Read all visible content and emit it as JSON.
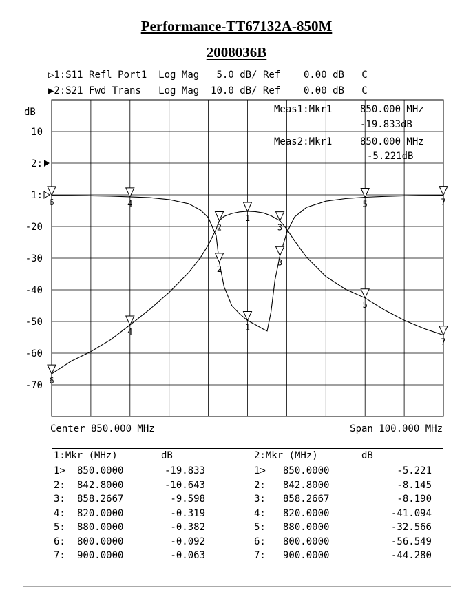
{
  "title": "Performance-TT67132A-850M",
  "subtitle": "2008036B",
  "traces_header": [
    {
      "marker": "▷1:",
      "param": "S11 Refl Port1",
      "format": "Log Mag",
      "scale": "5.0 dB/",
      "ref_label": "Ref",
      "ref": "0.00 dB",
      "tail": "C"
    },
    {
      "marker": "▶2:",
      "param": "S21 Fwd Trans",
      "format": "Log Mag",
      "scale": "10.0 dB/",
      "ref_label": "Ref",
      "ref": "0.00 dB",
      "tail": "C"
    }
  ],
  "y_unit": "dB",
  "y_axis_labels": [
    "10",
    "2:",
    "1:",
    "-20",
    "-30",
    "-40",
    "-50",
    "-60",
    "-70"
  ],
  "meas": [
    {
      "label": "Meas1:Mkr1",
      "freq": "850.000 MHz",
      "value": "-19.833dB"
    },
    {
      "label": "Meas2:Mkr1",
      "freq": "850.000 MHz",
      "value": "-5.221dB"
    }
  ],
  "center_label": "Center 850.000 MHz",
  "span_label": "Span 100.000 MHz",
  "table": {
    "left": {
      "header": {
        "mkr": "1:Mkr (MHz)",
        "unit": "dB"
      },
      "rows": [
        {
          "id": "1>",
          "freq": "850.0000",
          "val": "-19.833"
        },
        {
          "id": "2:",
          "freq": "842.8000",
          "val": "-10.643"
        },
        {
          "id": "3:",
          "freq": "858.2667",
          "val": "-9.598"
        },
        {
          "id": "4:",
          "freq": "820.0000",
          "val": "-0.319"
        },
        {
          "id": "5:",
          "freq": "880.0000",
          "val": "-0.382"
        },
        {
          "id": "6:",
          "freq": "800.0000",
          "val": "-0.092"
        },
        {
          "id": "7:",
          "freq": "900.0000",
          "val": "-0.063"
        }
      ]
    },
    "right": {
      "header": {
        "mkr": "2:Mkr (MHz)",
        "unit": "dB"
      },
      "rows": [
        {
          "id": "1>",
          "freq": "850.0000",
          "val": "-5.221"
        },
        {
          "id": "2:",
          "freq": "842.8000",
          "val": "-8.145"
        },
        {
          "id": "3:",
          "freq": "858.2667",
          "val": "-8.190"
        },
        {
          "id": "4:",
          "freq": "820.0000",
          "val": "-41.094"
        },
        {
          "id": "5:",
          "freq": "880.0000",
          "val": "-32.566"
        },
        {
          "id": "6:",
          "freq": "800.0000",
          "val": "-56.549"
        },
        {
          "id": "7:",
          "freq": "900.0000",
          "val": "-44.280"
        }
      ]
    }
  },
  "chart_data": {
    "type": "line",
    "x_range_mhz": [
      800,
      900
    ],
    "grid": true,
    "grid_divisions": {
      "x": 10,
      "y": 10
    },
    "series": [
      {
        "name": "S11 Refl Port1",
        "scale_db_per_div": 5,
        "ref_db": 0,
        "x": [
          800,
          805,
          810,
          815,
          820,
          825,
          830,
          835,
          838,
          840,
          842,
          842.8,
          844,
          846,
          848,
          850,
          852,
          854,
          855,
          856,
          857,
          858.27,
          860,
          862,
          865,
          870,
          875,
          880,
          885,
          890,
          895,
          900
        ],
        "y": [
          -0.092,
          -0.11,
          -0.15,
          -0.22,
          -0.319,
          -0.45,
          -0.75,
          -1.4,
          -2.4,
          -3.6,
          -6.5,
          -10.643,
          -14.5,
          -17.5,
          -18.8,
          -19.833,
          -20.5,
          -21.2,
          -21.5,
          -18.5,
          -13.5,
          -9.598,
          -6.0,
          -3.5,
          -2.0,
          -1.0,
          -0.6,
          -0.382,
          -0.25,
          -0.15,
          -0.1,
          -0.063
        ]
      },
      {
        "name": "S21 Fwd Trans",
        "scale_db_per_div": 10,
        "ref_db": 0,
        "x": [
          800,
          805,
          810,
          815,
          820,
          825,
          830,
          835,
          838,
          840,
          842,
          842.8,
          844,
          846,
          848,
          850,
          852,
          854,
          856,
          858.27,
          860,
          862,
          865,
          870,
          875,
          880,
          885,
          890,
          895,
          900
        ],
        "y": [
          -56.549,
          -52.5,
          -49.5,
          -45.8,
          -41.094,
          -36.2,
          -30.8,
          -24.5,
          -19.8,
          -15.8,
          -10.8,
          -8.145,
          -6.8,
          -5.9,
          -5.4,
          -5.221,
          -5.3,
          -5.7,
          -6.6,
          -8.19,
          -10.8,
          -14.5,
          -19.6,
          -25.8,
          -29.8,
          -32.566,
          -36.4,
          -39.6,
          -42.2,
          -44.28
        ]
      }
    ],
    "markers": {
      "S11 Refl Port1": [
        {
          "n": "1",
          "x": 850.0,
          "y": -19.833
        },
        {
          "n": "2",
          "x": 842.8,
          "y": -10.643
        },
        {
          "n": "3",
          "x": 858.2667,
          "y": -9.598
        },
        {
          "n": "4",
          "x": 820.0,
          "y": -0.319
        },
        {
          "n": "5",
          "x": 880.0,
          "y": -0.382
        },
        {
          "n": "6",
          "x": 800.0,
          "y": -0.092
        },
        {
          "n": "7",
          "x": 900.0,
          "y": -0.063
        }
      ],
      "S21 Fwd Trans": [
        {
          "n": "1",
          "x": 850.0,
          "y": -5.221
        },
        {
          "n": "2",
          "x": 842.8,
          "y": -8.145
        },
        {
          "n": "3",
          "x": 858.2667,
          "y": -8.19
        },
        {
          "n": "4",
          "x": 820.0,
          "y": -41.094
        },
        {
          "n": "5",
          "x": 880.0,
          "y": -32.566
        },
        {
          "n": "6",
          "x": 800.0,
          "y": -56.549
        },
        {
          "n": "7",
          "x": 900.0,
          "y": -44.28
        }
      ]
    }
  }
}
